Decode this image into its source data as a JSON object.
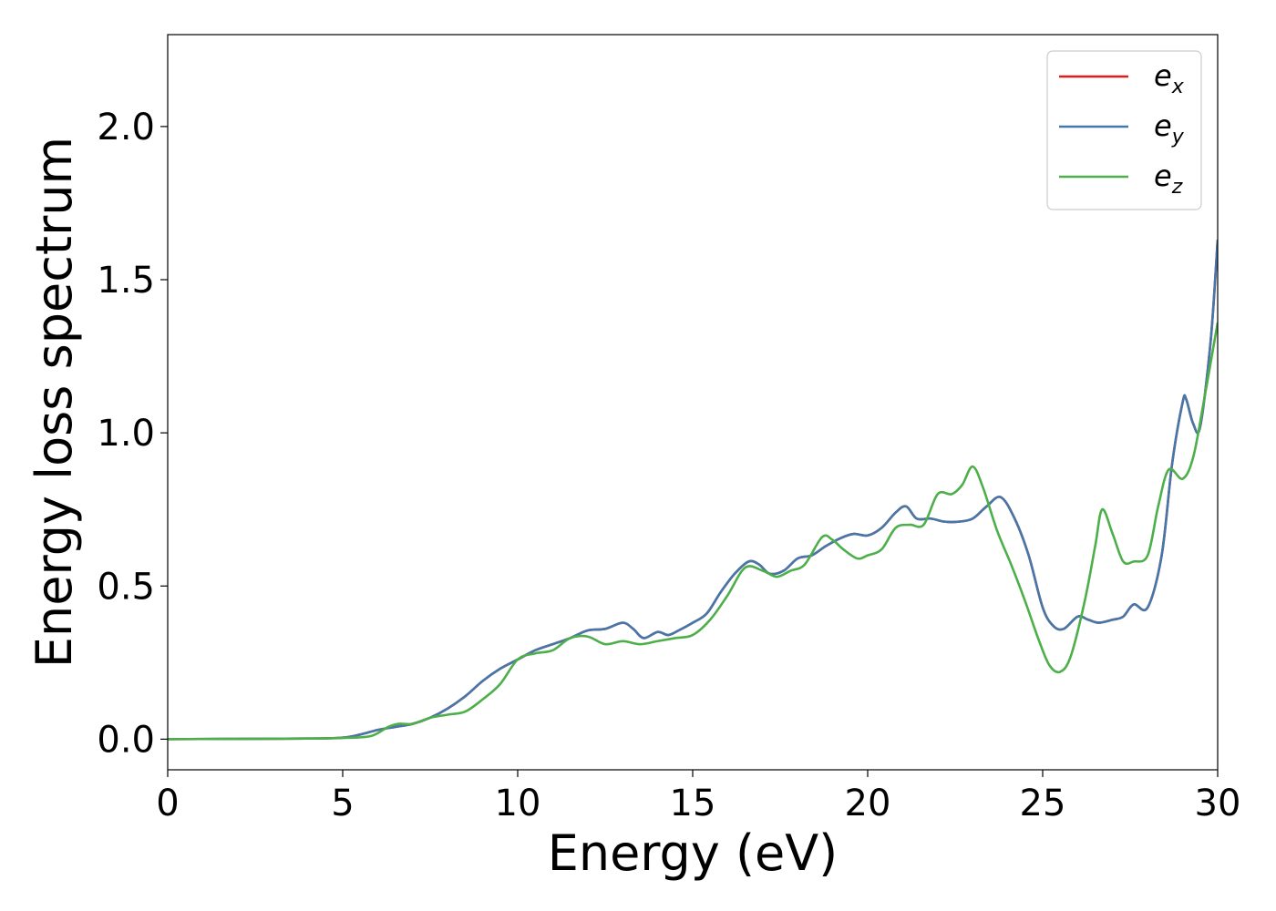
{
  "chart_data": {
    "type": "line",
    "xlabel": "Energy (eV)",
    "ylabel": "Energy loss spectrum",
    "xlim": [
      0,
      30
    ],
    "ylim": [
      -0.1,
      2.3
    ],
    "xticks": [
      0,
      5,
      10,
      15,
      20,
      25,
      30
    ],
    "xtick_labels": [
      "0",
      "5",
      "10",
      "15",
      "20",
      "25",
      "30"
    ],
    "yticks": [
      0.0,
      0.5,
      1.0,
      1.5,
      2.0
    ],
    "ytick_labels": [
      "0.0",
      "0.5",
      "1.0",
      "1.5",
      "2.0"
    ],
    "grid": false,
    "legend_position": "top-right",
    "series": [
      {
        "name": "e_x",
        "legend_main": "e",
        "legend_sub": "x",
        "color": "#e41a1c",
        "x": [
          0,
          4,
          5,
          5.5,
          6,
          6.5,
          7,
          7.5,
          8,
          8.5,
          9,
          9.5,
          10,
          10.5,
          11,
          11.5,
          12,
          12.5,
          13,
          13.3,
          13.6,
          14,
          14.3,
          14.6,
          15,
          15.4,
          15.8,
          16.2,
          16.6,
          16.9,
          17.2,
          17.6,
          18,
          18.4,
          18.8,
          19.2,
          19.6,
          20,
          20.4,
          20.8,
          21.1,
          21.4,
          21.8,
          22.2,
          22.6,
          23,
          23.4,
          23.8,
          24.2,
          24.6,
          25,
          25.3,
          25.6,
          26,
          26.3,
          26.6,
          27,
          27.3,
          27.6,
          28,
          28.4,
          28.7,
          29,
          29.1,
          29.3,
          29.5,
          29.8,
          30
        ],
        "y": [
          0,
          0.002,
          0.005,
          0.015,
          0.03,
          0.04,
          0.05,
          0.07,
          0.1,
          0.14,
          0.19,
          0.23,
          0.26,
          0.29,
          0.31,
          0.33,
          0.355,
          0.36,
          0.38,
          0.36,
          0.33,
          0.35,
          0.34,
          0.355,
          0.38,
          0.41,
          0.48,
          0.54,
          0.58,
          0.57,
          0.54,
          0.55,
          0.59,
          0.6,
          0.63,
          0.655,
          0.67,
          0.665,
          0.69,
          0.74,
          0.76,
          0.72,
          0.72,
          0.71,
          0.71,
          0.72,
          0.76,
          0.79,
          0.72,
          0.6,
          0.43,
          0.37,
          0.36,
          0.4,
          0.39,
          0.38,
          0.39,
          0.4,
          0.44,
          0.43,
          0.6,
          0.9,
          1.1,
          1.11,
          1.03,
          1.02,
          1.3,
          1.63
        ]
      },
      {
        "name": "e_y",
        "legend_main": "e",
        "legend_sub": "y",
        "color": "#4477aa",
        "x": [
          0,
          4,
          5,
          5.5,
          6,
          6.5,
          7,
          7.5,
          8,
          8.5,
          9,
          9.5,
          10,
          10.5,
          11,
          11.5,
          12,
          12.5,
          13,
          13.3,
          13.6,
          14,
          14.3,
          14.6,
          15,
          15.4,
          15.8,
          16.2,
          16.6,
          16.9,
          17.2,
          17.6,
          18,
          18.4,
          18.8,
          19.2,
          19.6,
          20,
          20.4,
          20.8,
          21.1,
          21.4,
          21.8,
          22.2,
          22.6,
          23,
          23.4,
          23.8,
          24.2,
          24.6,
          25,
          25.3,
          25.6,
          26,
          26.3,
          26.6,
          27,
          27.3,
          27.6,
          28,
          28.4,
          28.7,
          29,
          29.1,
          29.3,
          29.5,
          29.8,
          30
        ],
        "y": [
          0,
          0.002,
          0.005,
          0.015,
          0.03,
          0.04,
          0.05,
          0.07,
          0.1,
          0.14,
          0.19,
          0.23,
          0.26,
          0.29,
          0.31,
          0.33,
          0.355,
          0.36,
          0.38,
          0.36,
          0.33,
          0.35,
          0.34,
          0.355,
          0.38,
          0.41,
          0.48,
          0.54,
          0.58,
          0.57,
          0.54,
          0.55,
          0.59,
          0.6,
          0.63,
          0.655,
          0.67,
          0.665,
          0.69,
          0.74,
          0.76,
          0.72,
          0.72,
          0.71,
          0.71,
          0.72,
          0.76,
          0.79,
          0.72,
          0.6,
          0.43,
          0.37,
          0.36,
          0.4,
          0.39,
          0.38,
          0.39,
          0.4,
          0.44,
          0.43,
          0.6,
          0.9,
          1.1,
          1.11,
          1.03,
          1.02,
          1.3,
          1.63
        ]
      },
      {
        "name": "e_z",
        "legend_main": "e",
        "legend_sub": "z",
        "color": "#4daf4a",
        "x": [
          0,
          4,
          5,
          5.8,
          6.3,
          6.6,
          7,
          7.5,
          8,
          8.5,
          9,
          9.5,
          10,
          10.5,
          11,
          11.5,
          12,
          12.5,
          13,
          13.5,
          14,
          14.5,
          15,
          15.5,
          16,
          16.5,
          17,
          17.4,
          17.8,
          18.2,
          18.7,
          19,
          19.3,
          19.7,
          20,
          20.4,
          20.8,
          21.2,
          21.6,
          22,
          22.4,
          22.7,
          23,
          23.3,
          23.7,
          24.1,
          24.5,
          24.9,
          25.2,
          25.5,
          25.8,
          26.2,
          26.5,
          26.7,
          27,
          27.3,
          27.6,
          28,
          28.3,
          28.6,
          29,
          29.3,
          29.6,
          30
        ],
        "y": [
          0,
          0.002,
          0.004,
          0.01,
          0.04,
          0.05,
          0.05,
          0.07,
          0.08,
          0.09,
          0.13,
          0.18,
          0.26,
          0.28,
          0.29,
          0.33,
          0.335,
          0.31,
          0.32,
          0.31,
          0.32,
          0.33,
          0.34,
          0.39,
          0.47,
          0.56,
          0.55,
          0.53,
          0.55,
          0.57,
          0.66,
          0.65,
          0.62,
          0.59,
          0.6,
          0.62,
          0.69,
          0.7,
          0.7,
          0.8,
          0.8,
          0.83,
          0.89,
          0.82,
          0.68,
          0.57,
          0.45,
          0.32,
          0.24,
          0.22,
          0.27,
          0.45,
          0.63,
          0.75,
          0.67,
          0.58,
          0.58,
          0.6,
          0.76,
          0.88,
          0.85,
          0.92,
          1.1,
          1.36
        ]
      }
    ]
  }
}
